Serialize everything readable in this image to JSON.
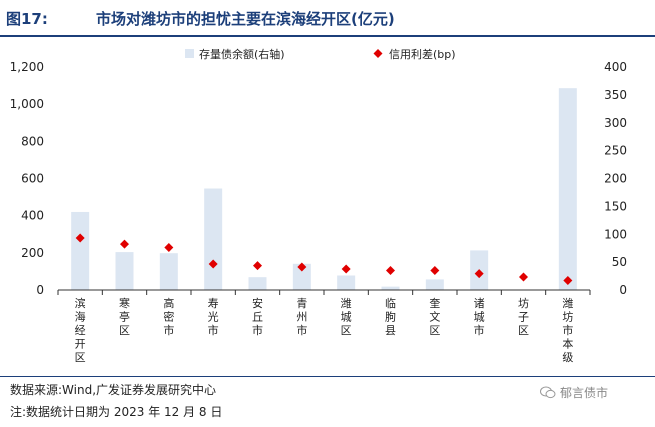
{
  "header": {
    "figure_label": "图17:",
    "title": "市场对潍坊市的担忧主要在滨海经开区(亿元)"
  },
  "footer": {
    "source": "数据来源:Wind,广发证券发展研究中心",
    "note": "注:数据统计日期为 2023 年 12 月 8 日",
    "watermark": "郁言债市"
  },
  "colors": {
    "bar": "#dce6f2",
    "marker": "#e00000",
    "title": "#1c3f7a"
  },
  "chart_data": {
    "type": "bar",
    "categories": [
      "滨海经开区",
      "寒亭区",
      "高密市",
      "寿光市",
      "安丘市",
      "青州市",
      "潍城区",
      "临朐县",
      "奎文区",
      "诸城市",
      "坊子区",
      "潍坊市本级"
    ],
    "series": [
      {
        "name": "存量债余额(右轴)",
        "kind": "bar",
        "axis": "right",
        "values": [
          140,
          68,
          66,
          182,
          23,
          47,
          26,
          6,
          19,
          71,
          0,
          362
        ]
      },
      {
        "name": "信用利差(bp)",
        "kind": "scatter",
        "marker": "diamond",
        "axis": "left",
        "values": [
          280,
          247,
          229,
          140,
          131,
          124,
          113,
          105,
          105,
          88,
          70,
          51
        ]
      }
    ],
    "left_axis": {
      "ticks": [
        "0",
        "200",
        "400",
        "600",
        "800",
        "1,000",
        "1,200"
      ],
      "ylim": [
        0,
        1200
      ]
    },
    "right_axis": {
      "ticks": [
        "0",
        "50",
        "100",
        "150",
        "200",
        "250",
        "300",
        "350",
        "400"
      ],
      "ylim": [
        0,
        400
      ]
    },
    "legend_position": "top"
  }
}
